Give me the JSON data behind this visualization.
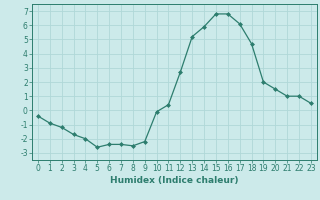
{
  "x": [
    0,
    1,
    2,
    3,
    4,
    5,
    6,
    7,
    8,
    9,
    10,
    11,
    12,
    13,
    14,
    15,
    16,
    17,
    18,
    19,
    20,
    21,
    22,
    23
  ],
  "y": [
    -0.4,
    -0.9,
    -1.2,
    -1.7,
    -2.0,
    -2.6,
    -2.4,
    -2.4,
    -2.5,
    -2.2,
    -0.1,
    0.4,
    2.7,
    5.2,
    5.9,
    6.8,
    6.8,
    6.1,
    4.7,
    2.0,
    1.5,
    1.0,
    1.0,
    0.5
  ],
  "line_color": "#2d7d6e",
  "marker": "D",
  "marker_size": 2.0,
  "bg_color": "#cceaea",
  "grid_color": "#b0d8d8",
  "xlabel": "Humidex (Indice chaleur)",
  "ylabel": "",
  "xlim": [
    -0.5,
    23.5
  ],
  "ylim": [
    -3.5,
    7.5
  ],
  "yticks": [
    -3,
    -2,
    -1,
    0,
    1,
    2,
    3,
    4,
    5,
    6,
    7
  ],
  "xticks": [
    0,
    1,
    2,
    3,
    4,
    5,
    6,
    7,
    8,
    9,
    10,
    11,
    12,
    13,
    14,
    15,
    16,
    17,
    18,
    19,
    20,
    21,
    22,
    23
  ],
  "tick_color": "#2d7d6e",
  "label_color": "#2d7d6e",
  "spine_color": "#2d7d6e",
  "tick_fontsize": 5.5,
  "xlabel_fontsize": 6.5
}
